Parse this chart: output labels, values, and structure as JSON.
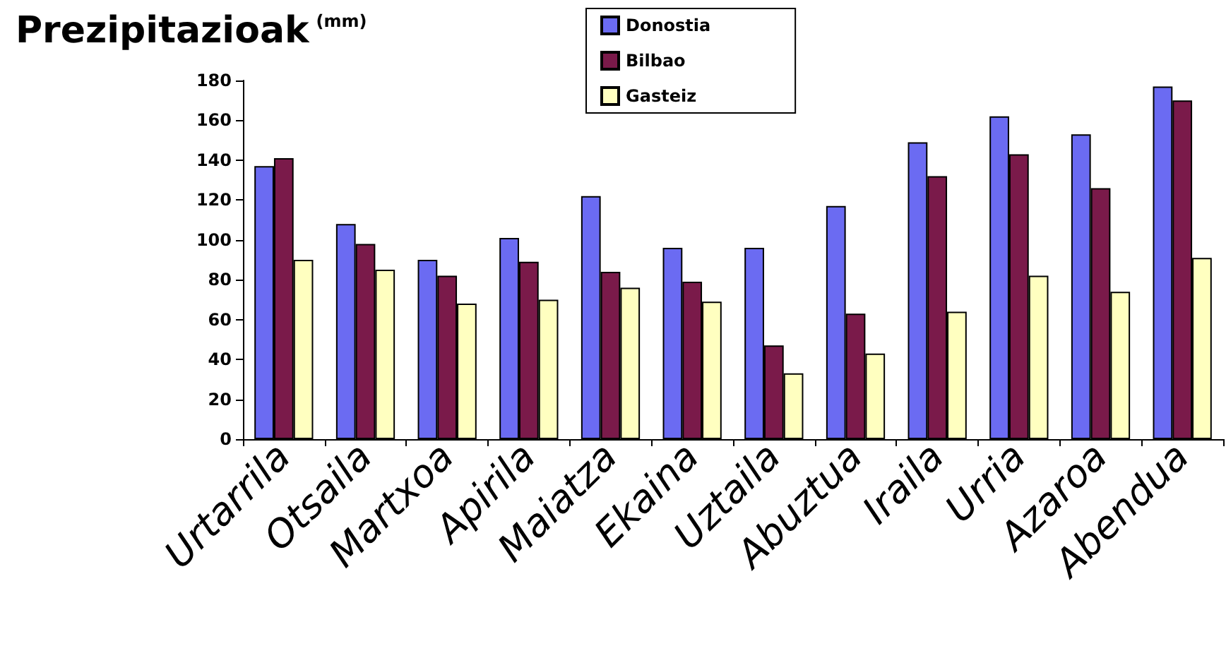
{
  "chart_data": {
    "type": "bar",
    "title": "Prezipitazioak (mm)",
    "categories": [
      "Urtarrila",
      "Otsaila",
      "Martxoa",
      "Apirila",
      "Maiatza",
      "Ekaina",
      "Uztaila",
      "Abuztua",
      "Iraila",
      "Urria",
      "Azaroa",
      "Abendua"
    ],
    "series": [
      {
        "name": "Donostia",
        "color": "#6b6bf2",
        "values": [
          137,
          108,
          90,
          101,
          122,
          96,
          96,
          117,
          149,
          162,
          153,
          177
        ]
      },
      {
        "name": "Bilbao",
        "color": "#7a1a4a",
        "values": [
          141,
          98,
          82,
          89,
          84,
          79,
          47,
          63,
          132,
          143,
          126,
          170
        ]
      },
      {
        "name": "Gasteiz",
        "color": "#ffffc0",
        "values": [
          90,
          85,
          68,
          70,
          76,
          69,
          33,
          43,
          64,
          82,
          74,
          91
        ]
      }
    ],
    "ylim": [
      0,
      180
    ],
    "yticks": [
      0,
      20,
      40,
      60,
      80,
      100,
      120,
      140,
      160,
      180
    ],
    "grid": false,
    "legend": "top"
  }
}
